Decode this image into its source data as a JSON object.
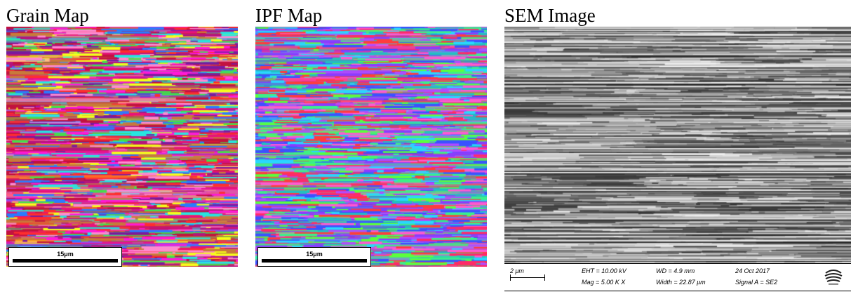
{
  "panels": {
    "grain": {
      "title": "Grain Map",
      "scalebar": "15μm"
    },
    "ipf": {
      "title": "IPF Map",
      "scalebar": "15μm"
    },
    "sem": {
      "title": "SEM Image",
      "scalebar": "2 μm",
      "eht": "EHT = 10.00 kV",
      "mag": "Mag =   5.00 K X",
      "wd": "WD =  4.9 mm",
      "width": "Width = 22.87 μm",
      "date": "24 Oct 2017",
      "signal": "Signal A = SE2"
    }
  },
  "colors": {
    "grain_palette": [
      "#e8127a",
      "#c2123f",
      "#ff1ad8",
      "#27e6e0",
      "#f6ff1a",
      "#43e04a",
      "#c97a3a",
      "#ff2e2e",
      "#7a1a9e",
      "#2b7bff",
      "#b6147e",
      "#ff8ad0"
    ],
    "ipf_palette": [
      "#ff2a6a",
      "#3b52ff",
      "#3cf08a",
      "#8a3cff",
      "#ff5ad0",
      "#2ad6ff",
      "#5cff3c",
      "#ff3c3c",
      "#b04cff",
      "#22c0c0"
    ]
  }
}
